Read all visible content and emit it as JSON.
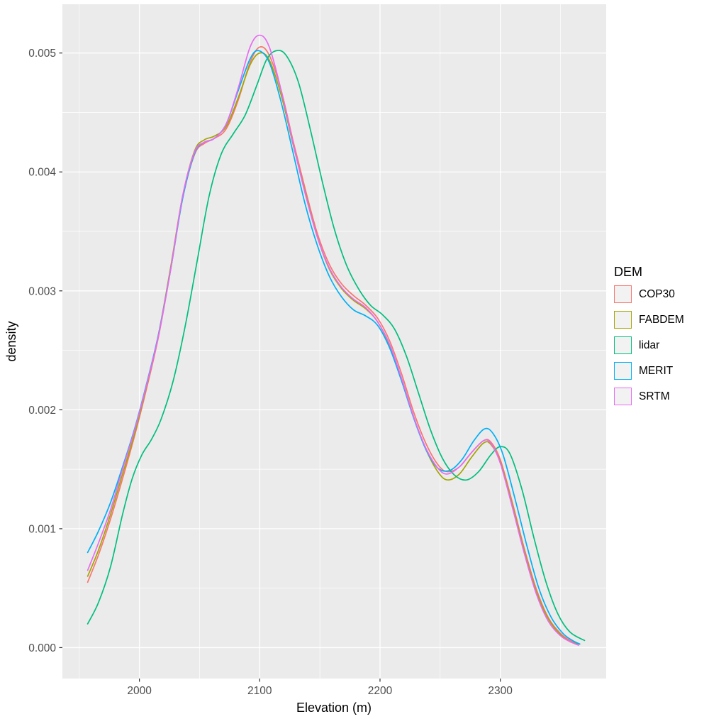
{
  "panel": {
    "bg": "#EBEBEB",
    "grid_color": "#FFFFFF",
    "tick_color": "#333333",
    "tick_label_color": "#4D4D4D",
    "legend_key_bg": "#F2F2F2"
  },
  "chart_data": {
    "type": "line",
    "title": "",
    "xlabel": "Elevation (m)",
    "ylabel": "density",
    "legend_title": "DEM",
    "legend_position": "right",
    "grid": true,
    "xlim": [
      1936,
      2388
    ],
    "ylim": [
      -0.00026,
      0.00541
    ],
    "x_ticks": {
      "major": [
        2000,
        2100,
        2200,
        2300
      ],
      "labels": [
        "2000",
        "2100",
        "2200",
        "2300"
      ],
      "minor": [
        1950,
        2050,
        2150,
        2250,
        2350
      ]
    },
    "y_ticks": {
      "major": [
        0,
        0.001,
        0.002,
        0.003,
        0.004,
        0.005
      ],
      "labels": [
        "0.000",
        "0.001",
        "0.002",
        "0.003",
        "0.004",
        "0.005"
      ],
      "minor": [
        0.0005,
        0.0015,
        0.0025,
        0.0035,
        0.0045
      ]
    },
    "series": [
      {
        "name": "COP30",
        "color": "#F8766D",
        "points": [
          [
            1957,
            0.00055
          ],
          [
            1966,
            0.00078
          ],
          [
            1976,
            0.00108
          ],
          [
            1986,
            0.00142
          ],
          [
            1996,
            0.00178
          ],
          [
            2006,
            0.00218
          ],
          [
            2016,
            0.00262
          ],
          [
            2026,
            0.00318
          ],
          [
            2036,
            0.00378
          ],
          [
            2046,
            0.00415
          ],
          [
            2054,
            0.00424
          ],
          [
            2062,
            0.00428
          ],
          [
            2072,
            0.00436
          ],
          [
            2082,
            0.0046
          ],
          [
            2092,
            0.00492
          ],
          [
            2100,
            0.00505
          ],
          [
            2108,
            0.00498
          ],
          [
            2118,
            0.00468
          ],
          [
            2128,
            0.00425
          ],
          [
            2138,
            0.00385
          ],
          [
            2148,
            0.00348
          ],
          [
            2158,
            0.00322
          ],
          [
            2168,
            0.00306
          ],
          [
            2178,
            0.00296
          ],
          [
            2188,
            0.00288
          ],
          [
            2198,
            0.00277
          ],
          [
            2208,
            0.00258
          ],
          [
            2218,
            0.0023
          ],
          [
            2228,
            0.00198
          ],
          [
            2238,
            0.00172
          ],
          [
            2248,
            0.00154
          ],
          [
            2256,
            0.00148
          ],
          [
            2266,
            0.00152
          ],
          [
            2276,
            0.00164
          ],
          [
            2286,
            0.00174
          ],
          [
            2292,
            0.00173
          ],
          [
            2300,
            0.00158
          ],
          [
            2310,
            0.00122
          ],
          [
            2320,
            0.00083
          ],
          [
            2330,
            0.00049
          ],
          [
            2340,
            0.00025
          ],
          [
            2350,
            0.00012
          ],
          [
            2358,
            6e-05
          ],
          [
            2366,
            3e-05
          ]
        ]
      },
      {
        "name": "FABDEM",
        "color": "#A3A500",
        "points": [
          [
            1957,
            0.0006
          ],
          [
            1966,
            0.00082
          ],
          [
            1976,
            0.00112
          ],
          [
            1986,
            0.00146
          ],
          [
            1996,
            0.0018
          ],
          [
            2006,
            0.0022
          ],
          [
            2016,
            0.00264
          ],
          [
            2026,
            0.0032
          ],
          [
            2036,
            0.0038
          ],
          [
            2046,
            0.00418
          ],
          [
            2054,
            0.00427
          ],
          [
            2062,
            0.0043
          ],
          [
            2072,
            0.00438
          ],
          [
            2082,
            0.00462
          ],
          [
            2092,
            0.0049
          ],
          [
            2100,
            0.005
          ],
          [
            2108,
            0.00494
          ],
          [
            2118,
            0.00464
          ],
          [
            2128,
            0.00422
          ],
          [
            2138,
            0.00382
          ],
          [
            2148,
            0.00345
          ],
          [
            2158,
            0.00318
          ],
          [
            2168,
            0.00302
          ],
          [
            2178,
            0.00292
          ],
          [
            2188,
            0.00285
          ],
          [
            2198,
            0.00274
          ],
          [
            2208,
            0.00254
          ],
          [
            2218,
            0.00226
          ],
          [
            2228,
            0.00194
          ],
          [
            2238,
            0.00167
          ],
          [
            2248,
            0.00148
          ],
          [
            2256,
            0.00141
          ],
          [
            2266,
            0.00146
          ],
          [
            2276,
            0.0016
          ],
          [
            2286,
            0.00172
          ],
          [
            2292,
            0.00171
          ],
          [
            2300,
            0.00156
          ],
          [
            2310,
            0.0012
          ],
          [
            2320,
            0.00081
          ],
          [
            2330,
            0.00047
          ],
          [
            2340,
            0.00024
          ],
          [
            2350,
            0.00011
          ],
          [
            2358,
            5e-05
          ],
          [
            2366,
            3e-05
          ]
        ]
      },
      {
        "name": "lidar",
        "color": "#00BF7D",
        "points": [
          [
            1957,
            0.0002
          ],
          [
            1966,
            0.00038
          ],
          [
            1976,
            0.00068
          ],
          [
            1986,
            0.00112
          ],
          [
            1994,
            0.00142
          ],
          [
            2002,
            0.00162
          ],
          [
            2010,
            0.00175
          ],
          [
            2018,
            0.00192
          ],
          [
            2028,
            0.00224
          ],
          [
            2038,
            0.0027
          ],
          [
            2048,
            0.00325
          ],
          [
            2058,
            0.0038
          ],
          [
            2068,
            0.00415
          ],
          [
            2078,
            0.00432
          ],
          [
            2088,
            0.00448
          ],
          [
            2098,
            0.00474
          ],
          [
            2106,
            0.00495
          ],
          [
            2114,
            0.00502
          ],
          [
            2122,
            0.00498
          ],
          [
            2132,
            0.00476
          ],
          [
            2142,
            0.00436
          ],
          [
            2152,
            0.00392
          ],
          [
            2162,
            0.00352
          ],
          [
            2172,
            0.00322
          ],
          [
            2182,
            0.00302
          ],
          [
            2192,
            0.00288
          ],
          [
            2202,
            0.0028
          ],
          [
            2212,
            0.00268
          ],
          [
            2222,
            0.00245
          ],
          [
            2232,
            0.00214
          ],
          [
            2242,
            0.00183
          ],
          [
            2252,
            0.00159
          ],
          [
            2262,
            0.00145
          ],
          [
            2272,
            0.00141
          ],
          [
            2282,
            0.00148
          ],
          [
            2292,
            0.00162
          ],
          [
            2300,
            0.00169
          ],
          [
            2308,
            0.00163
          ],
          [
            2318,
            0.00133
          ],
          [
            2328,
            0.00092
          ],
          [
            2338,
            0.00055
          ],
          [
            2348,
            0.00028
          ],
          [
            2358,
            0.00013
          ],
          [
            2370,
            6e-05
          ]
        ]
      },
      {
        "name": "MERIT",
        "color": "#00B0F6",
        "points": [
          [
            1957,
            0.0008
          ],
          [
            1966,
            0.00098
          ],
          [
            1976,
            0.00122
          ],
          [
            1986,
            0.00152
          ],
          [
            1996,
            0.00184
          ],
          [
            2006,
            0.00222
          ],
          [
            2016,
            0.00264
          ],
          [
            2026,
            0.00318
          ],
          [
            2036,
            0.00378
          ],
          [
            2046,
            0.00416
          ],
          [
            2054,
            0.00425
          ],
          [
            2062,
            0.00428
          ],
          [
            2072,
            0.0044
          ],
          [
            2082,
            0.00468
          ],
          [
            2092,
            0.00495
          ],
          [
            2099,
            0.00502
          ],
          [
            2108,
            0.00492
          ],
          [
            2118,
            0.00458
          ],
          [
            2128,
            0.00415
          ],
          [
            2138,
            0.00372
          ],
          [
            2148,
            0.00338
          ],
          [
            2158,
            0.00312
          ],
          [
            2168,
            0.00295
          ],
          [
            2178,
            0.00284
          ],
          [
            2188,
            0.00279
          ],
          [
            2198,
            0.00271
          ],
          [
            2208,
            0.00252
          ],
          [
            2218,
            0.00224
          ],
          [
            2228,
            0.00193
          ],
          [
            2238,
            0.00167
          ],
          [
            2248,
            0.00151
          ],
          [
            2258,
            0.00149
          ],
          [
            2268,
            0.00158
          ],
          [
            2278,
            0.00174
          ],
          [
            2287,
            0.00184
          ],
          [
            2294,
            0.0018
          ],
          [
            2302,
            0.00163
          ],
          [
            2312,
            0.00126
          ],
          [
            2322,
            0.00086
          ],
          [
            2332,
            0.0005
          ],
          [
            2342,
            0.00026
          ],
          [
            2352,
            0.00012
          ],
          [
            2360,
            6e-05
          ],
          [
            2366,
            3e-05
          ]
        ]
      },
      {
        "name": "SRTM",
        "color": "#E76BF3",
        "points": [
          [
            1957,
            0.00065
          ],
          [
            1966,
            0.00088
          ],
          [
            1976,
            0.00116
          ],
          [
            1986,
            0.0015
          ],
          [
            1996,
            0.00183
          ],
          [
            2006,
            0.00221
          ],
          [
            2016,
            0.00263
          ],
          [
            2026,
            0.00318
          ],
          [
            2036,
            0.0038
          ],
          [
            2046,
            0.00417
          ],
          [
            2054,
            0.00425
          ],
          [
            2062,
            0.00428
          ],
          [
            2072,
            0.0044
          ],
          [
            2082,
            0.0047
          ],
          [
            2092,
            0.00505
          ],
          [
            2100,
            0.00515
          ],
          [
            2108,
            0.00505
          ],
          [
            2118,
            0.00468
          ],
          [
            2128,
            0.00423
          ],
          [
            2138,
            0.00381
          ],
          [
            2148,
            0.00345
          ],
          [
            2158,
            0.00319
          ],
          [
            2168,
            0.00303
          ],
          [
            2178,
            0.00293
          ],
          [
            2188,
            0.00286
          ],
          [
            2198,
            0.00274
          ],
          [
            2208,
            0.00255
          ],
          [
            2218,
            0.00226
          ],
          [
            2228,
            0.00194
          ],
          [
            2238,
            0.00168
          ],
          [
            2248,
            0.00151
          ],
          [
            2256,
            0.00146
          ],
          [
            2266,
            0.00152
          ],
          [
            2276,
            0.00164
          ],
          [
            2286,
            0.00174
          ],
          [
            2292,
            0.00172
          ],
          [
            2300,
            0.00155
          ],
          [
            2310,
            0.00118
          ],
          [
            2320,
            0.00079
          ],
          [
            2330,
            0.00045
          ],
          [
            2340,
            0.00022
          ],
          [
            2350,
            0.0001
          ],
          [
            2358,
            5e-05
          ],
          [
            2365,
            2e-05
          ]
        ]
      }
    ]
  }
}
